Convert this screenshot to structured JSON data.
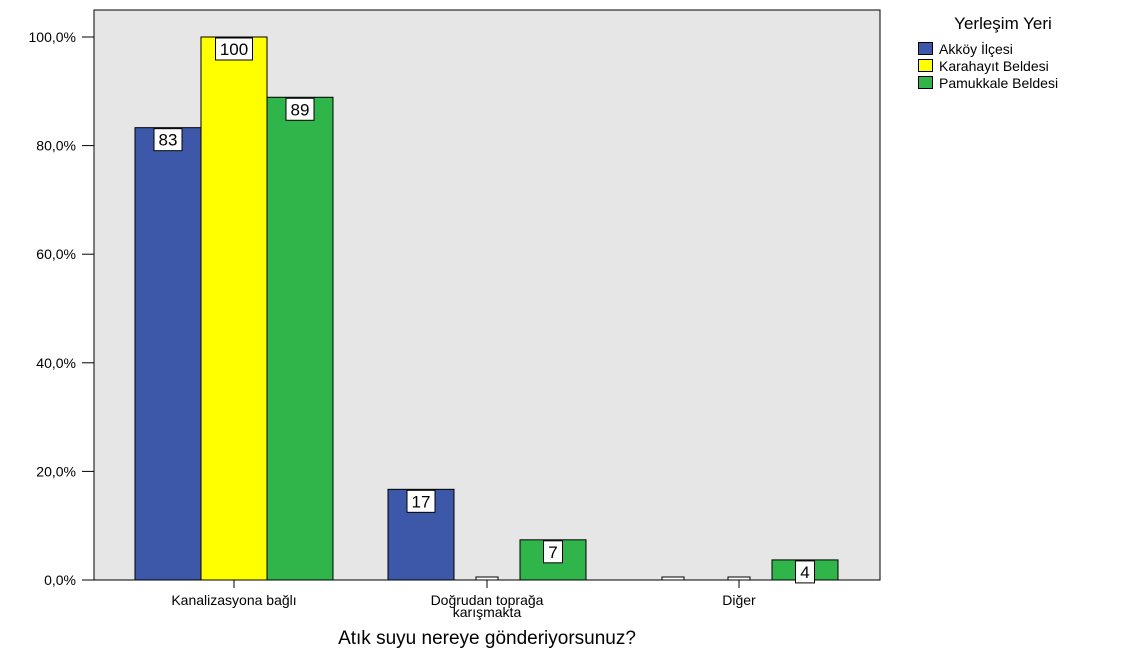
{
  "chart_data": {
    "type": "bar",
    "title": "",
    "xlabel": "Atık suyu nereye gönderiyorsunuz?",
    "ylabel": "",
    "ylim": [
      0,
      104
    ],
    "yticks": [
      "0,0%",
      "20,0%",
      "40,0%",
      "60,0%",
      "80,0%",
      "100,0%"
    ],
    "ytick_values": [
      0,
      20,
      40,
      60,
      80,
      100
    ],
    "categories": [
      [
        "Kanalizasyona bağlı"
      ],
      [
        "Doğrudan toprağa",
        "karışmakta"
      ],
      [
        "Diğer"
      ]
    ],
    "series": [
      {
        "name": "Akköy İlçesi",
        "color": "#3e58a9",
        "values": [
          83.3,
          16.7,
          0
        ],
        "labels": [
          "83",
          "17",
          ""
        ]
      },
      {
        "name": "Karahayıt Beldesi",
        "color": "#ffff00",
        "values": [
          100,
          0,
          0
        ],
        "labels": [
          "100",
          "",
          ""
        ]
      },
      {
        "name": "Pamukkale Beldesi",
        "color": "#2fb54a",
        "values": [
          88.9,
          7.4,
          3.7
        ],
        "labels": [
          "89",
          "7",
          "4"
        ]
      }
    ],
    "legend": {
      "title": "Yerleşim Yeri",
      "position": "right"
    },
    "plot_background": "#e6e6e6",
    "grid": false
  }
}
